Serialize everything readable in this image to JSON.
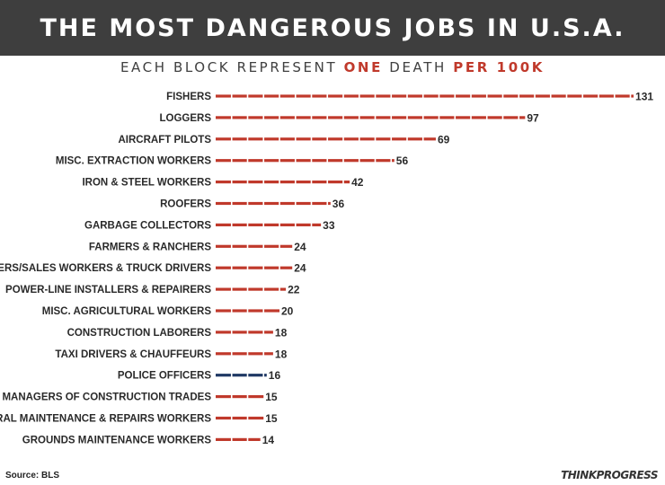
{
  "header": {
    "title": "THE MOST DANGEROUS JOBS IN U.S.A.",
    "subtitle_part1": "EACH BLOCK REPRESENT ",
    "subtitle_part2": "ONE",
    "subtitle_part3": " DEATH ",
    "subtitle_part4": "PER 100K"
  },
  "footer": {
    "source": "Source: BLS",
    "brand": "THINKPROGRESS"
  },
  "colors": {
    "bar_default": "#c0392b",
    "bar_highlight": "#1f3864",
    "accent": "#c0392b"
  },
  "chart_data": {
    "type": "bar",
    "orientation": "horizontal",
    "title": "THE MOST DANGEROUS JOBS IN U.S.A.",
    "subtitle": "EACH BLOCK REPRESENT ONE DEATH PER 100K",
    "categories": [
      "FISHERS",
      "LOGGERS",
      "AIRCRAFT PILOTS",
      "MISC. EXTRACTION WORKERS",
      "IRON & STEEL WORKERS",
      "ROOFERS",
      "GARBAGE COLLECTORS",
      "FARMERS & RANCHERS",
      "DRIVERS/SALES WORKERS & TRUCK DRIVERS",
      "POWER-LINE INSTALLERS & REPAIRERS",
      "MISC. AGRICULTURAL WORKERS",
      "CONSTRUCTION LABORERS",
      "TAXI DRIVERS & CHAUFFEURS",
      "POLICE OFFICERS",
      "MANAGERS OF CONSTRUCTION TRADES",
      "GENERAL MAINTENANCE & REPAIRS WORKERS",
      "GROUNDS MAINTENANCE WORKERS"
    ],
    "values": [
      131,
      97,
      69,
      56,
      42,
      36,
      33,
      24,
      24,
      22,
      20,
      18,
      18,
      16,
      15,
      15,
      14
    ],
    "highlight_category": "POLICE OFFICERS",
    "value_labels": [
      "131",
      "97",
      "69",
      "56",
      "42",
      "36",
      "33",
      "24",
      "24",
      "22",
      "20",
      "18",
      "18",
      "16",
      "15",
      "15",
      "14"
    ]
  }
}
